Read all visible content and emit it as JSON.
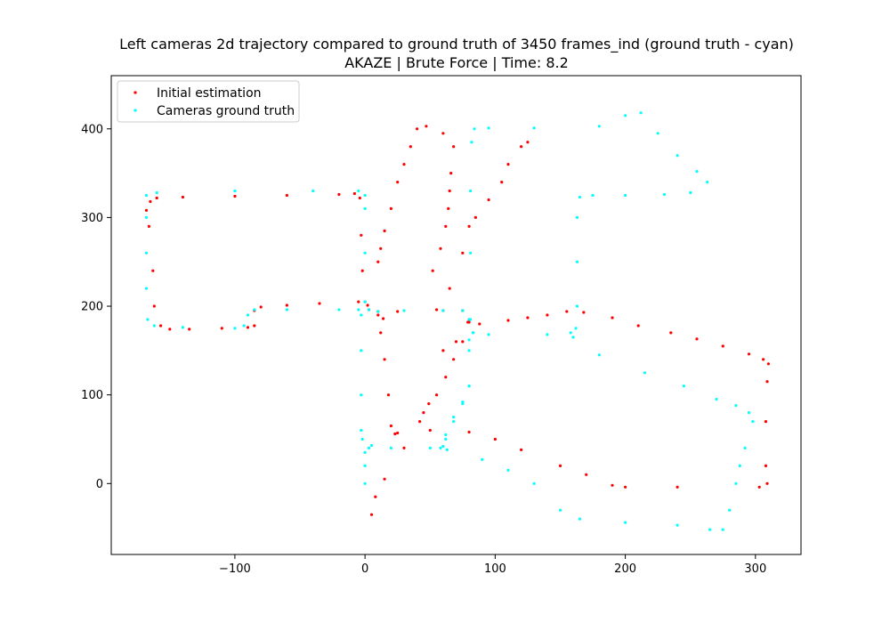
{
  "chart_data": {
    "type": "scatter",
    "title": "Left cameras 2d trajectory compared to ground truth of 3450 frames_ind (ground truth - cyan)",
    "subtitle": "AKAZE | Brute Force | Time: 8.2",
    "xlabel": "",
    "ylabel": "",
    "xlim": [
      -195,
      335
    ],
    "ylim": [
      -80,
      460
    ],
    "xticks": [
      -100,
      0,
      100,
      200,
      300
    ],
    "yticks": [
      0,
      100,
      200,
      300,
      400
    ],
    "grid": false,
    "legend": "top-left",
    "series": [
      {
        "name": "Initial estimation",
        "color": "#ff0000",
        "points": [
          [
            14,
            186
          ],
          [
            60,
            195
          ],
          [
            79,
            182
          ],
          [
            88,
            180
          ],
          [
            110,
            184
          ],
          [
            125,
            187
          ],
          [
            140,
            190
          ],
          [
            155,
            194
          ],
          [
            168,
            193
          ],
          [
            190,
            187
          ],
          [
            210,
            178
          ],
          [
            235,
            170
          ],
          [
            255,
            163
          ],
          [
            275,
            155
          ],
          [
            295,
            146
          ],
          [
            306,
            140
          ],
          [
            310,
            135
          ],
          [
            309,
            115
          ],
          [
            308,
            70
          ],
          [
            308,
            20
          ],
          [
            309,
            0
          ],
          [
            303,
            -4
          ],
          [
            240,
            -4
          ],
          [
            200,
            -4
          ],
          [
            190,
            -2
          ],
          [
            170,
            10
          ],
          [
            150,
            20
          ],
          [
            120,
            38
          ],
          [
            100,
            50
          ],
          [
            80,
            58
          ],
          [
            50,
            60
          ],
          [
            25,
            57
          ],
          [
            23,
            56
          ],
          [
            20,
            65
          ],
          [
            18,
            100
          ],
          [
            15,
            140
          ],
          [
            12,
            170
          ],
          [
            10,
            190
          ],
          [
            2,
            201
          ],
          [
            -5,
            205
          ],
          [
            -35,
            203
          ],
          [
            -60,
            201
          ],
          [
            -80,
            199
          ],
          [
            -85,
            195
          ],
          [
            -85,
            178
          ],
          [
            -90,
            176
          ],
          [
            -110,
            175
          ],
          [
            -135,
            174
          ],
          [
            -150,
            174
          ],
          [
            -157,
            178
          ],
          [
            -162,
            200
          ],
          [
            -163,
            240
          ],
          [
            -166,
            290
          ],
          [
            -168,
            308
          ],
          [
            -165,
            318
          ],
          [
            -160,
            322
          ],
          [
            -140,
            323
          ],
          [
            -100,
            324
          ],
          [
            -60,
            325
          ],
          [
            -20,
            326
          ],
          [
            -8,
            327
          ],
          [
            -4,
            322
          ],
          [
            -3,
            280
          ],
          [
            -2,
            240
          ],
          [
            0,
            205
          ],
          [
            3,
            196
          ],
          [
            10,
            194
          ],
          [
            25,
            194
          ],
          [
            55,
            196
          ],
          [
            75,
            195
          ],
          [
            80,
            185
          ],
          [
            75,
            160
          ],
          [
            68,
            140
          ],
          [
            62,
            120
          ],
          [
            55,
            100
          ],
          [
            49,
            90
          ],
          [
            45,
            80
          ],
          [
            42,
            70
          ],
          [
            30,
            40
          ],
          [
            15,
            5
          ],
          [
            8,
            -15
          ],
          [
            5,
            -35
          ],
          [
            65,
            220
          ],
          [
            75,
            260
          ],
          [
            80,
            290
          ],
          [
            85,
            300
          ],
          [
            95,
            320
          ],
          [
            105,
            340
          ],
          [
            110,
            360
          ],
          [
            120,
            380
          ],
          [
            125,
            385
          ],
          [
            80,
            182
          ],
          [
            70,
            160
          ],
          [
            60,
            150
          ],
          [
            52,
            240
          ],
          [
            58,
            265
          ],
          [
            62,
            290
          ],
          [
            64,
            310
          ],
          [
            65,
            330
          ],
          [
            66,
            350
          ],
          [
            68,
            380
          ],
          [
            60,
            395
          ],
          [
            47,
            403
          ],
          [
            40,
            400
          ],
          [
            35,
            380
          ],
          [
            30,
            360
          ],
          [
            25,
            340
          ],
          [
            20,
            310
          ],
          [
            15,
            285
          ],
          [
            12,
            265
          ],
          [
            10,
            250
          ]
        ]
      },
      {
        "name": "Cameras ground truth",
        "color": "#00ffff",
        "points": [
          [
            0,
            0
          ],
          [
            0,
            20
          ],
          [
            0,
            35
          ],
          [
            3,
            40
          ],
          [
            20,
            40
          ],
          [
            50,
            40
          ],
          [
            63,
            38
          ],
          [
            90,
            27
          ],
          [
            110,
            15
          ],
          [
            130,
            0
          ],
          [
            150,
            -30
          ],
          [
            165,
            -40
          ],
          [
            200,
            -44
          ],
          [
            240,
            -47
          ],
          [
            265,
            -52
          ],
          [
            275,
            -52
          ],
          [
            280,
            -30
          ],
          [
            285,
            0
          ],
          [
            288,
            20
          ],
          [
            292,
            40
          ],
          [
            298,
            70
          ],
          [
            295,
            80
          ],
          [
            285,
            88
          ],
          [
            270,
            95
          ],
          [
            245,
            110
          ],
          [
            215,
            125
          ],
          [
            180,
            145
          ],
          [
            160,
            165
          ],
          [
            140,
            168
          ],
          [
            95,
            168
          ],
          [
            83,
            170
          ],
          [
            81,
            185
          ],
          [
            81,
            260
          ],
          [
            81,
            330
          ],
          [
            82,
            385
          ],
          [
            84,
            400
          ],
          [
            95,
            401
          ],
          [
            130,
            401
          ],
          [
            180,
            403
          ],
          [
            200,
            415
          ],
          [
            212,
            418
          ],
          [
            225,
            395
          ],
          [
            240,
            370
          ],
          [
            255,
            352
          ],
          [
            263,
            340
          ],
          [
            250,
            328
          ],
          [
            230,
            326
          ],
          [
            200,
            325
          ],
          [
            175,
            325
          ],
          [
            165,
            323
          ],
          [
            163,
            300
          ],
          [
            163,
            250
          ],
          [
            163,
            200
          ],
          [
            162,
            175
          ],
          [
            158,
            170
          ],
          [
            83,
            170
          ],
          [
            80,
            162
          ],
          [
            80,
            110
          ],
          [
            75,
            90
          ],
          [
            68,
            70
          ],
          [
            62,
            50
          ],
          [
            58,
            40
          ],
          [
            60,
            42
          ],
          [
            62,
            55
          ],
          [
            68,
            75
          ],
          [
            75,
            92
          ],
          [
            80,
            110
          ],
          [
            80,
            150
          ],
          [
            80,
            185
          ],
          [
            75,
            195
          ],
          [
            60,
            195
          ],
          [
            30,
            195
          ],
          [
            10,
            194
          ],
          [
            3,
            196
          ],
          [
            0,
            205
          ],
          [
            0,
            260
          ],
          [
            0,
            310
          ],
          [
            0,
            325
          ],
          [
            -5,
            330
          ],
          [
            -40,
            330
          ],
          [
            -100,
            330
          ],
          [
            -160,
            328
          ],
          [
            -168,
            325
          ],
          [
            -168,
            300
          ],
          [
            -168,
            260
          ],
          [
            -168,
            220
          ],
          [
            -167,
            185
          ],
          [
            -162,
            178
          ],
          [
            -140,
            176
          ],
          [
            -100,
            175
          ],
          [
            -93,
            178
          ],
          [
            -90,
            190
          ],
          [
            -85,
            196
          ],
          [
            -60,
            196
          ],
          [
            -20,
            196
          ],
          [
            -5,
            196
          ],
          [
            -3,
            190
          ],
          [
            -3,
            150
          ],
          [
            -3,
            100
          ],
          [
            -3,
            60
          ],
          [
            -2,
            50
          ],
          [
            5,
            43
          ]
        ]
      }
    ]
  }
}
